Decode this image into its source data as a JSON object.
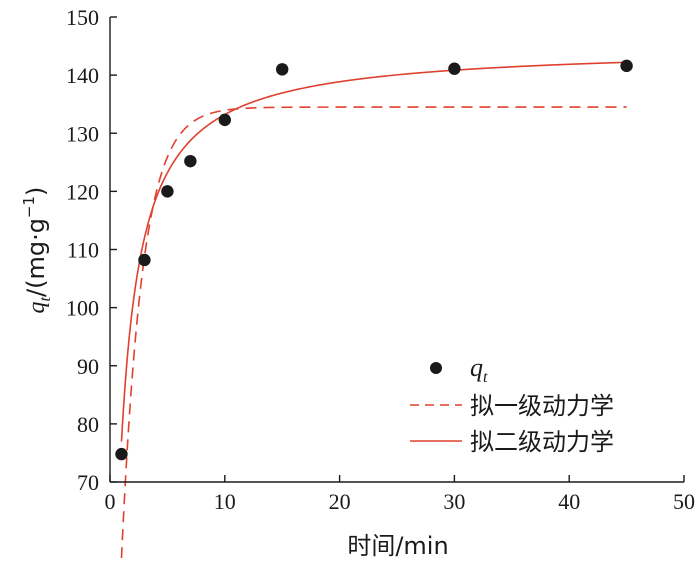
{
  "chart_data": {
    "type": "scatter",
    "x_axis": {
      "label": "时间/min",
      "range": [
        0,
        50
      ],
      "ticks": [
        0,
        10,
        20,
        30,
        40,
        50
      ]
    },
    "y_axis": {
      "label_main": "q",
      "label_sub": "t",
      "label_rest": "/(mg·g",
      "label_sup": "−1",
      "label_close": ")",
      "range": [
        70,
        150
      ],
      "ticks": [
        70,
        80,
        90,
        100,
        110,
        120,
        130,
        140,
        150
      ]
    },
    "series": [
      {
        "name": "q",
        "name_sub": "t",
        "kind": "points",
        "color": "#1a1a1a",
        "x": [
          1,
          3,
          5,
          7,
          10,
          15,
          30,
          45
        ],
        "y": [
          74.8,
          108.2,
          120.0,
          125.2,
          132.3,
          141.0,
          141.1,
          141.6
        ]
      },
      {
        "name": "拟一级动力学",
        "kind": "dashed-line",
        "color": "#e0402e",
        "model": "pfo",
        "params": {
          "qe": 134.5,
          "k1": 0.55
        }
      },
      {
        "name": "拟二级动力学",
        "kind": "solid-line",
        "color": "#e0402e",
        "model": "pso",
        "params": {
          "qe": 145.0,
          "k2": 0.0078
        }
      }
    ],
    "legend_position": "bottom-right",
    "grid": false
  }
}
